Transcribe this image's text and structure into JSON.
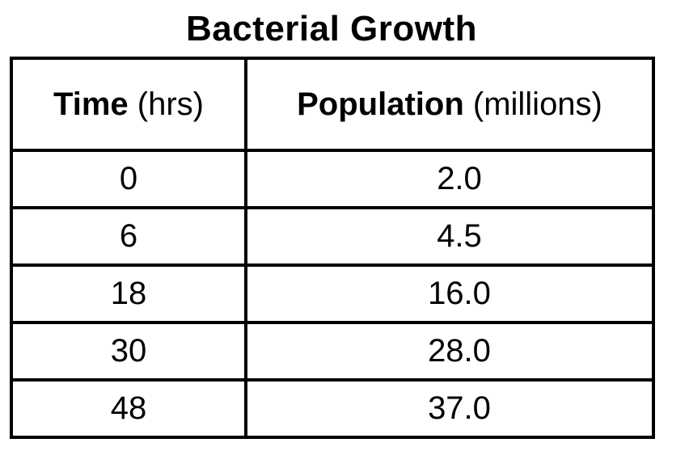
{
  "chart_data": {
    "type": "table",
    "title": "Bacterial Growth",
    "columns": [
      {
        "name": "Time",
        "unit": "(hrs)"
      },
      {
        "name": "Population",
        "unit": "(millions)"
      }
    ],
    "rows": [
      [
        "0",
        "2.0"
      ],
      [
        "6",
        "4.5"
      ],
      [
        "18",
        "16.0"
      ],
      [
        "30",
        "28.0"
      ],
      [
        "48",
        "37.0"
      ]
    ]
  }
}
